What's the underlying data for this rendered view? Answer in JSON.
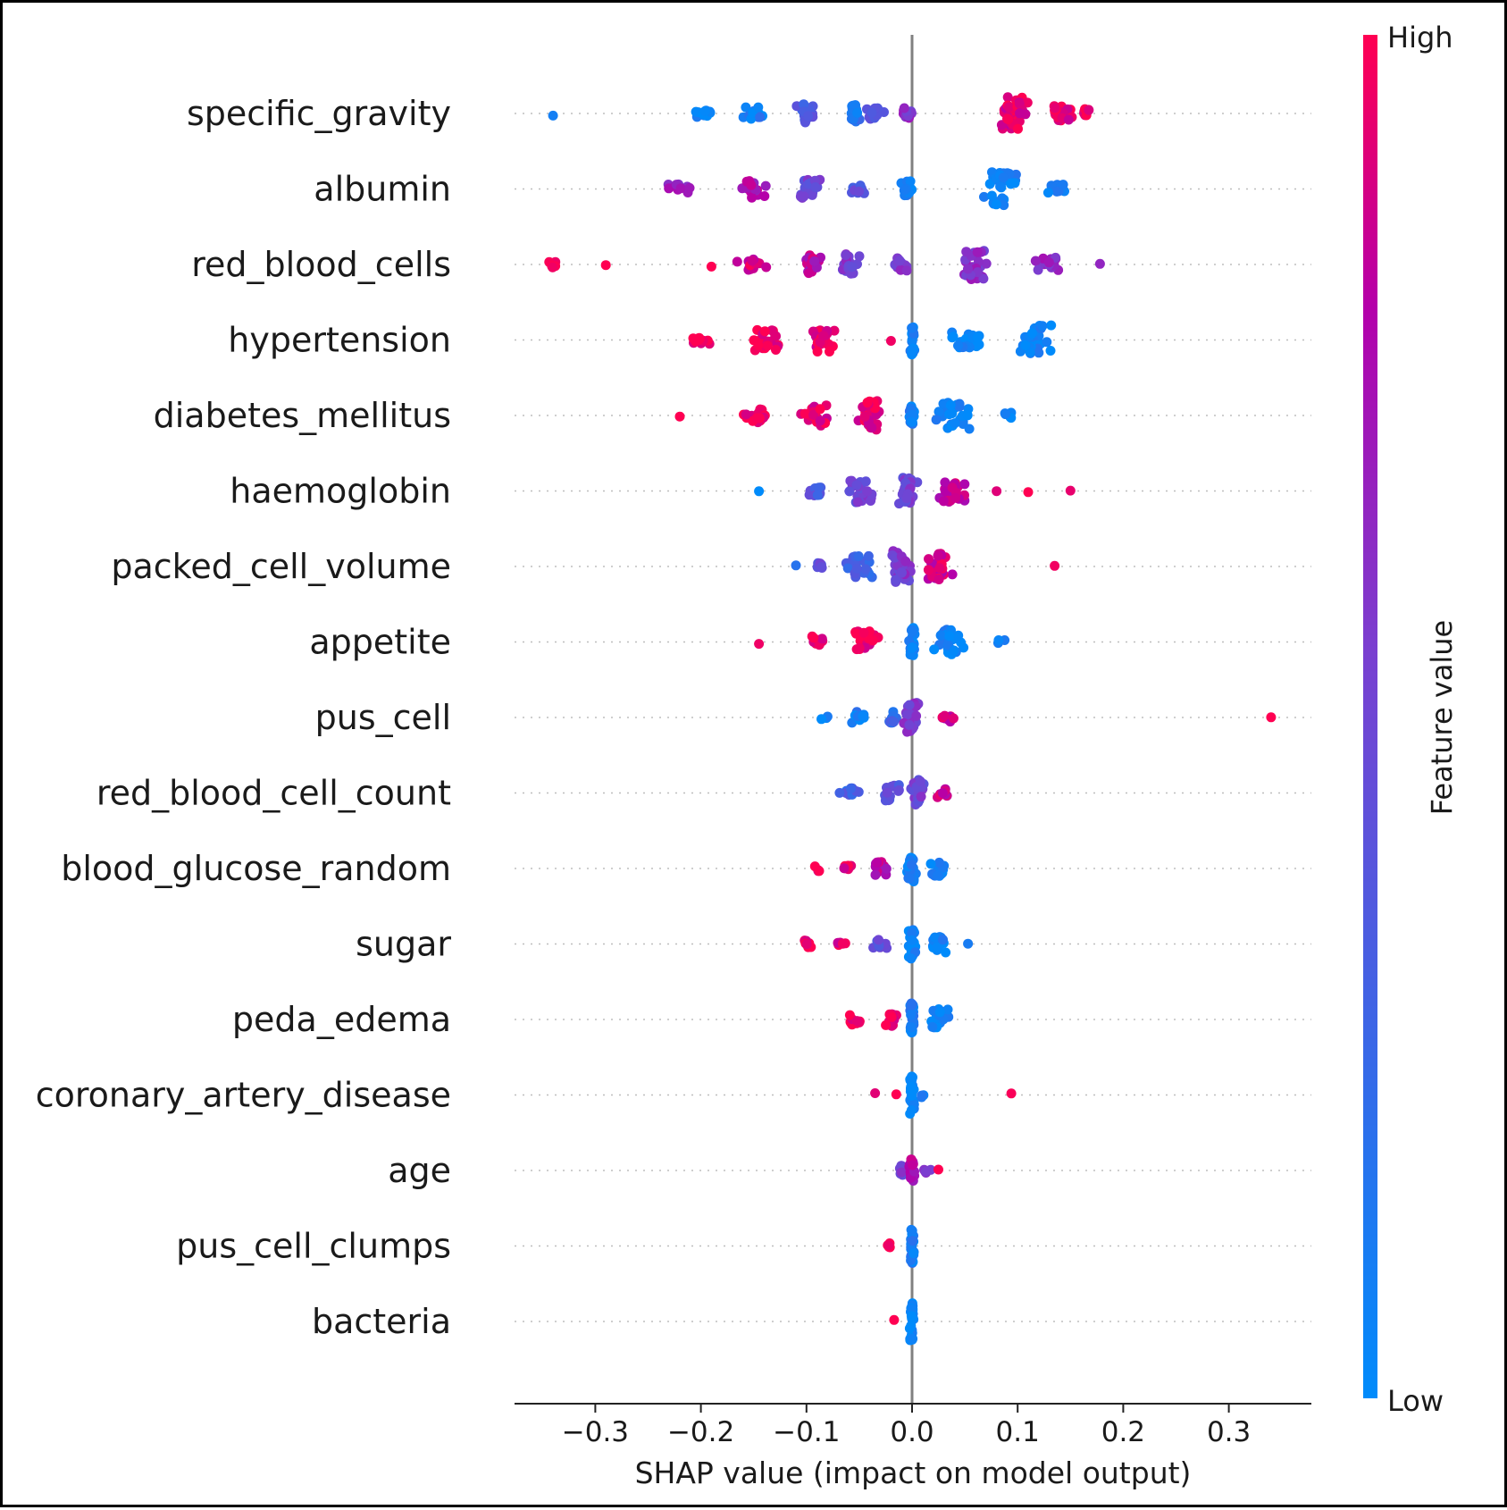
{
  "chart_data": {
    "type": "scatter",
    "subtype": "shap-beeswarm",
    "xlabel": "SHAP value (impact on model output)",
    "xlim": [
      -0.375,
      0.38
    ],
    "xticks": [
      -0.3,
      -0.2,
      -0.1,
      0.0,
      0.1,
      0.2,
      0.3
    ],
    "xtick_labels": [
      "−0.3",
      "−0.2",
      "−0.1",
      "0.0",
      "0.1",
      "0.2",
      "0.3"
    ],
    "grid": false,
    "colorbar": {
      "label": "Feature value",
      "high_label": "High",
      "low_label": "Low",
      "low_color": "#008bfb",
      "high_color": "#ff0052"
    },
    "features": [
      {
        "name": "specific_gravity",
        "clusters": [
          {
            "x": -0.34,
            "n": 1,
            "spread": 0.0,
            "v": 0.05
          },
          {
            "x": -0.2,
            "n": 10,
            "spread": 0.02,
            "v": 0.05
          },
          {
            "x": -0.15,
            "n": 14,
            "spread": 0.025,
            "v": 0.1
          },
          {
            "x": -0.1,
            "n": 22,
            "spread": 0.012,
            "v": 0.35
          },
          {
            "x": -0.055,
            "n": 20,
            "spread": 0.008,
            "v": 0.15
          },
          {
            "x": -0.035,
            "n": 12,
            "spread": 0.012,
            "v": 0.45
          },
          {
            "x": -0.005,
            "n": 12,
            "spread": 0.01,
            "v": 0.6
          },
          {
            "x": 0.095,
            "n": 34,
            "spread": 0.018,
            "v": 0.92
          },
          {
            "x": 0.14,
            "n": 18,
            "spread": 0.015,
            "v": 0.95
          },
          {
            "x": 0.165,
            "n": 10,
            "spread": 0.006,
            "v": 1.0
          }
        ]
      },
      {
        "name": "albumin",
        "clusters": [
          {
            "x": -0.22,
            "n": 10,
            "spread": 0.02,
            "v": 0.7
          },
          {
            "x": -0.15,
            "n": 20,
            "spread": 0.015,
            "v": 0.75
          },
          {
            "x": -0.1,
            "n": 24,
            "spread": 0.018,
            "v": 0.5
          },
          {
            "x": -0.05,
            "n": 12,
            "spread": 0.01,
            "v": 0.4
          },
          {
            "x": -0.005,
            "n": 18,
            "spread": 0.006,
            "v": 0.1
          },
          {
            "x": 0.085,
            "n": 36,
            "spread": 0.02,
            "v": 0.05
          },
          {
            "x": 0.135,
            "n": 10,
            "spread": 0.015,
            "v": 0.08
          }
        ]
      },
      {
        "name": "red_blood_cells",
        "clusters": [
          {
            "x": -0.34,
            "n": 5,
            "spread": 0.006,
            "v": 1.0
          },
          {
            "x": -0.29,
            "n": 1,
            "spread": 0.0,
            "v": 1.0
          },
          {
            "x": -0.19,
            "n": 1,
            "spread": 0.0,
            "v": 1.0
          },
          {
            "x": -0.15,
            "n": 14,
            "spread": 0.018,
            "v": 0.88
          },
          {
            "x": -0.095,
            "n": 20,
            "spread": 0.015,
            "v": 0.8
          },
          {
            "x": -0.06,
            "n": 22,
            "spread": 0.012,
            "v": 0.55
          },
          {
            "x": -0.01,
            "n": 14,
            "spread": 0.01,
            "v": 0.55
          },
          {
            "x": 0.06,
            "n": 30,
            "spread": 0.02,
            "v": 0.62
          },
          {
            "x": 0.13,
            "n": 16,
            "spread": 0.018,
            "v": 0.65
          },
          {
            "x": 0.178,
            "n": 1,
            "spread": 0.0,
            "v": 0.6
          }
        ]
      },
      {
        "name": "hypertension",
        "clusters": [
          {
            "x": -0.2,
            "n": 12,
            "spread": 0.012,
            "v": 1.0
          },
          {
            "x": -0.14,
            "n": 24,
            "spread": 0.02,
            "v": 0.98
          },
          {
            "x": -0.085,
            "n": 26,
            "spread": 0.018,
            "v": 0.95
          },
          {
            "x": -0.02,
            "n": 1,
            "spread": 0.0,
            "v": 1.0
          },
          {
            "x": 0.0,
            "n": 24,
            "spread": 0.003,
            "v": 0.05
          },
          {
            "x": 0.05,
            "n": 20,
            "spread": 0.025,
            "v": 0.05
          },
          {
            "x": 0.115,
            "n": 30,
            "spread": 0.02,
            "v": 0.05
          }
        ]
      },
      {
        "name": "diabetes_mellitus",
        "clusters": [
          {
            "x": -0.22,
            "n": 1,
            "spread": 0.0,
            "v": 1.0
          },
          {
            "x": -0.15,
            "n": 16,
            "spread": 0.02,
            "v": 0.97
          },
          {
            "x": -0.09,
            "n": 22,
            "spread": 0.02,
            "v": 0.95
          },
          {
            "x": -0.04,
            "n": 30,
            "spread": 0.015,
            "v": 0.95
          },
          {
            "x": 0.0,
            "n": 22,
            "spread": 0.004,
            "v": 0.1
          },
          {
            "x": 0.04,
            "n": 28,
            "spread": 0.025,
            "v": 0.05
          },
          {
            "x": 0.09,
            "n": 6,
            "spread": 0.008,
            "v": 0.05
          }
        ]
      },
      {
        "name": "haemoglobin",
        "clusters": [
          {
            "x": -0.145,
            "n": 1,
            "spread": 0.0,
            "v": 0.1
          },
          {
            "x": -0.09,
            "n": 10,
            "spread": 0.012,
            "v": 0.35
          },
          {
            "x": -0.05,
            "n": 24,
            "spread": 0.018,
            "v": 0.5
          },
          {
            "x": -0.005,
            "n": 30,
            "spread": 0.012,
            "v": 0.5
          },
          {
            "x": 0.04,
            "n": 24,
            "spread": 0.02,
            "v": 0.85
          },
          {
            "x": 0.08,
            "n": 1,
            "spread": 0.0,
            "v": 1.0
          },
          {
            "x": 0.11,
            "n": 1,
            "spread": 0.0,
            "v": 1.0
          },
          {
            "x": 0.15,
            "n": 1,
            "spread": 0.0,
            "v": 1.0
          }
        ]
      },
      {
        "name": "packed_cell_volume",
        "clusters": [
          {
            "x": -0.11,
            "n": 1,
            "spread": 0.0,
            "v": 0.1
          },
          {
            "x": -0.085,
            "n": 8,
            "spread": 0.008,
            "v": 0.4
          },
          {
            "x": -0.05,
            "n": 24,
            "spread": 0.015,
            "v": 0.3
          },
          {
            "x": -0.01,
            "n": 34,
            "spread": 0.012,
            "v": 0.55
          },
          {
            "x": 0.025,
            "n": 28,
            "spread": 0.015,
            "v": 0.88
          },
          {
            "x": 0.135,
            "n": 1,
            "spread": 0.0,
            "v": 1.0
          }
        ]
      },
      {
        "name": "appetite",
        "clusters": [
          {
            "x": -0.145,
            "n": 1,
            "spread": 0.0,
            "v": 1.0
          },
          {
            "x": -0.09,
            "n": 12,
            "spread": 0.008,
            "v": 0.98
          },
          {
            "x": -0.045,
            "n": 24,
            "spread": 0.018,
            "v": 0.97
          },
          {
            "x": 0.0,
            "n": 30,
            "spread": 0.004,
            "v": 0.05
          },
          {
            "x": 0.035,
            "n": 26,
            "spread": 0.02,
            "v": 0.05
          },
          {
            "x": 0.085,
            "n": 3,
            "spread": 0.006,
            "v": 0.05
          }
        ]
      },
      {
        "name": "pus_cell",
        "clusters": [
          {
            "x": -0.085,
            "n": 3,
            "spread": 0.006,
            "v": 0.05
          },
          {
            "x": -0.05,
            "n": 12,
            "spread": 0.012,
            "v": 0.1
          },
          {
            "x": -0.02,
            "n": 14,
            "spread": 0.008,
            "v": 0.25
          },
          {
            "x": 0.0,
            "n": 30,
            "spread": 0.01,
            "v": 0.55
          },
          {
            "x": 0.035,
            "n": 10,
            "spread": 0.01,
            "v": 0.85
          },
          {
            "x": 0.34,
            "n": 1,
            "spread": 0.0,
            "v": 1.0
          }
        ]
      },
      {
        "name": "red_blood_cell_count",
        "clusters": [
          {
            "x": -0.06,
            "n": 10,
            "spread": 0.012,
            "v": 0.3
          },
          {
            "x": -0.02,
            "n": 18,
            "spread": 0.012,
            "v": 0.4
          },
          {
            "x": 0.005,
            "n": 26,
            "spread": 0.01,
            "v": 0.5
          },
          {
            "x": 0.03,
            "n": 10,
            "spread": 0.008,
            "v": 0.85
          }
        ]
      },
      {
        "name": "blood_glucose_random",
        "clusters": [
          {
            "x": -0.09,
            "n": 4,
            "spread": 0.006,
            "v": 1.0
          },
          {
            "x": -0.06,
            "n": 6,
            "spread": 0.01,
            "v": 0.95
          },
          {
            "x": -0.03,
            "n": 14,
            "spread": 0.01,
            "v": 0.8
          },
          {
            "x": 0.0,
            "n": 26,
            "spread": 0.006,
            "v": 0.1
          },
          {
            "x": 0.025,
            "n": 16,
            "spread": 0.01,
            "v": 0.05
          }
        ]
      },
      {
        "name": "sugar",
        "clusters": [
          {
            "x": -0.1,
            "n": 8,
            "spread": 0.008,
            "v": 1.0
          },
          {
            "x": -0.07,
            "n": 6,
            "spread": 0.01,
            "v": 0.95
          },
          {
            "x": -0.03,
            "n": 10,
            "spread": 0.012,
            "v": 0.4
          },
          {
            "x": 0.0,
            "n": 30,
            "spread": 0.004,
            "v": 0.05
          },
          {
            "x": 0.025,
            "n": 20,
            "spread": 0.012,
            "v": 0.05
          },
          {
            "x": 0.053,
            "n": 1,
            "spread": 0.0,
            "v": 0.05
          }
        ]
      },
      {
        "name": "peda_edema",
        "clusters": [
          {
            "x": -0.055,
            "n": 12,
            "spread": 0.008,
            "v": 1.0
          },
          {
            "x": -0.02,
            "n": 14,
            "spread": 0.01,
            "v": 0.97
          },
          {
            "x": 0.0,
            "n": 26,
            "spread": 0.003,
            "v": 0.1
          },
          {
            "x": 0.025,
            "n": 22,
            "spread": 0.012,
            "v": 0.05
          }
        ]
      },
      {
        "name": "coronary_artery_disease",
        "clusters": [
          {
            "x": -0.035,
            "n": 1,
            "spread": 0.0,
            "v": 1.0
          },
          {
            "x": -0.015,
            "n": 1,
            "spread": 0.0,
            "v": 1.0
          },
          {
            "x": 0.0,
            "n": 30,
            "spread": 0.003,
            "v": 0.05
          },
          {
            "x": 0.01,
            "n": 3,
            "spread": 0.003,
            "v": 0.05
          },
          {
            "x": 0.094,
            "n": 1,
            "spread": 0.0,
            "v": 1.0
          }
        ]
      },
      {
        "name": "age",
        "clusters": [
          {
            "x": -0.01,
            "n": 10,
            "spread": 0.004,
            "v": 0.5
          },
          {
            "x": 0.0,
            "n": 22,
            "spread": 0.004,
            "v": 0.8
          },
          {
            "x": 0.015,
            "n": 5,
            "spread": 0.006,
            "v": 0.6
          },
          {
            "x": 0.025,
            "n": 1,
            "spread": 0.0,
            "v": 1.0
          }
        ]
      },
      {
        "name": "pus_cell_clumps",
        "clusters": [
          {
            "x": -0.02,
            "n": 5,
            "spread": 0.006,
            "v": 1.0
          },
          {
            "x": 0.0,
            "n": 28,
            "spread": 0.003,
            "v": 0.1
          }
        ]
      },
      {
        "name": "bacteria",
        "clusters": [
          {
            "x": -0.017,
            "n": 1,
            "spread": 0.0,
            "v": 1.0
          },
          {
            "x": 0.0,
            "n": 30,
            "spread": 0.003,
            "v": 0.05
          }
        ]
      }
    ]
  }
}
